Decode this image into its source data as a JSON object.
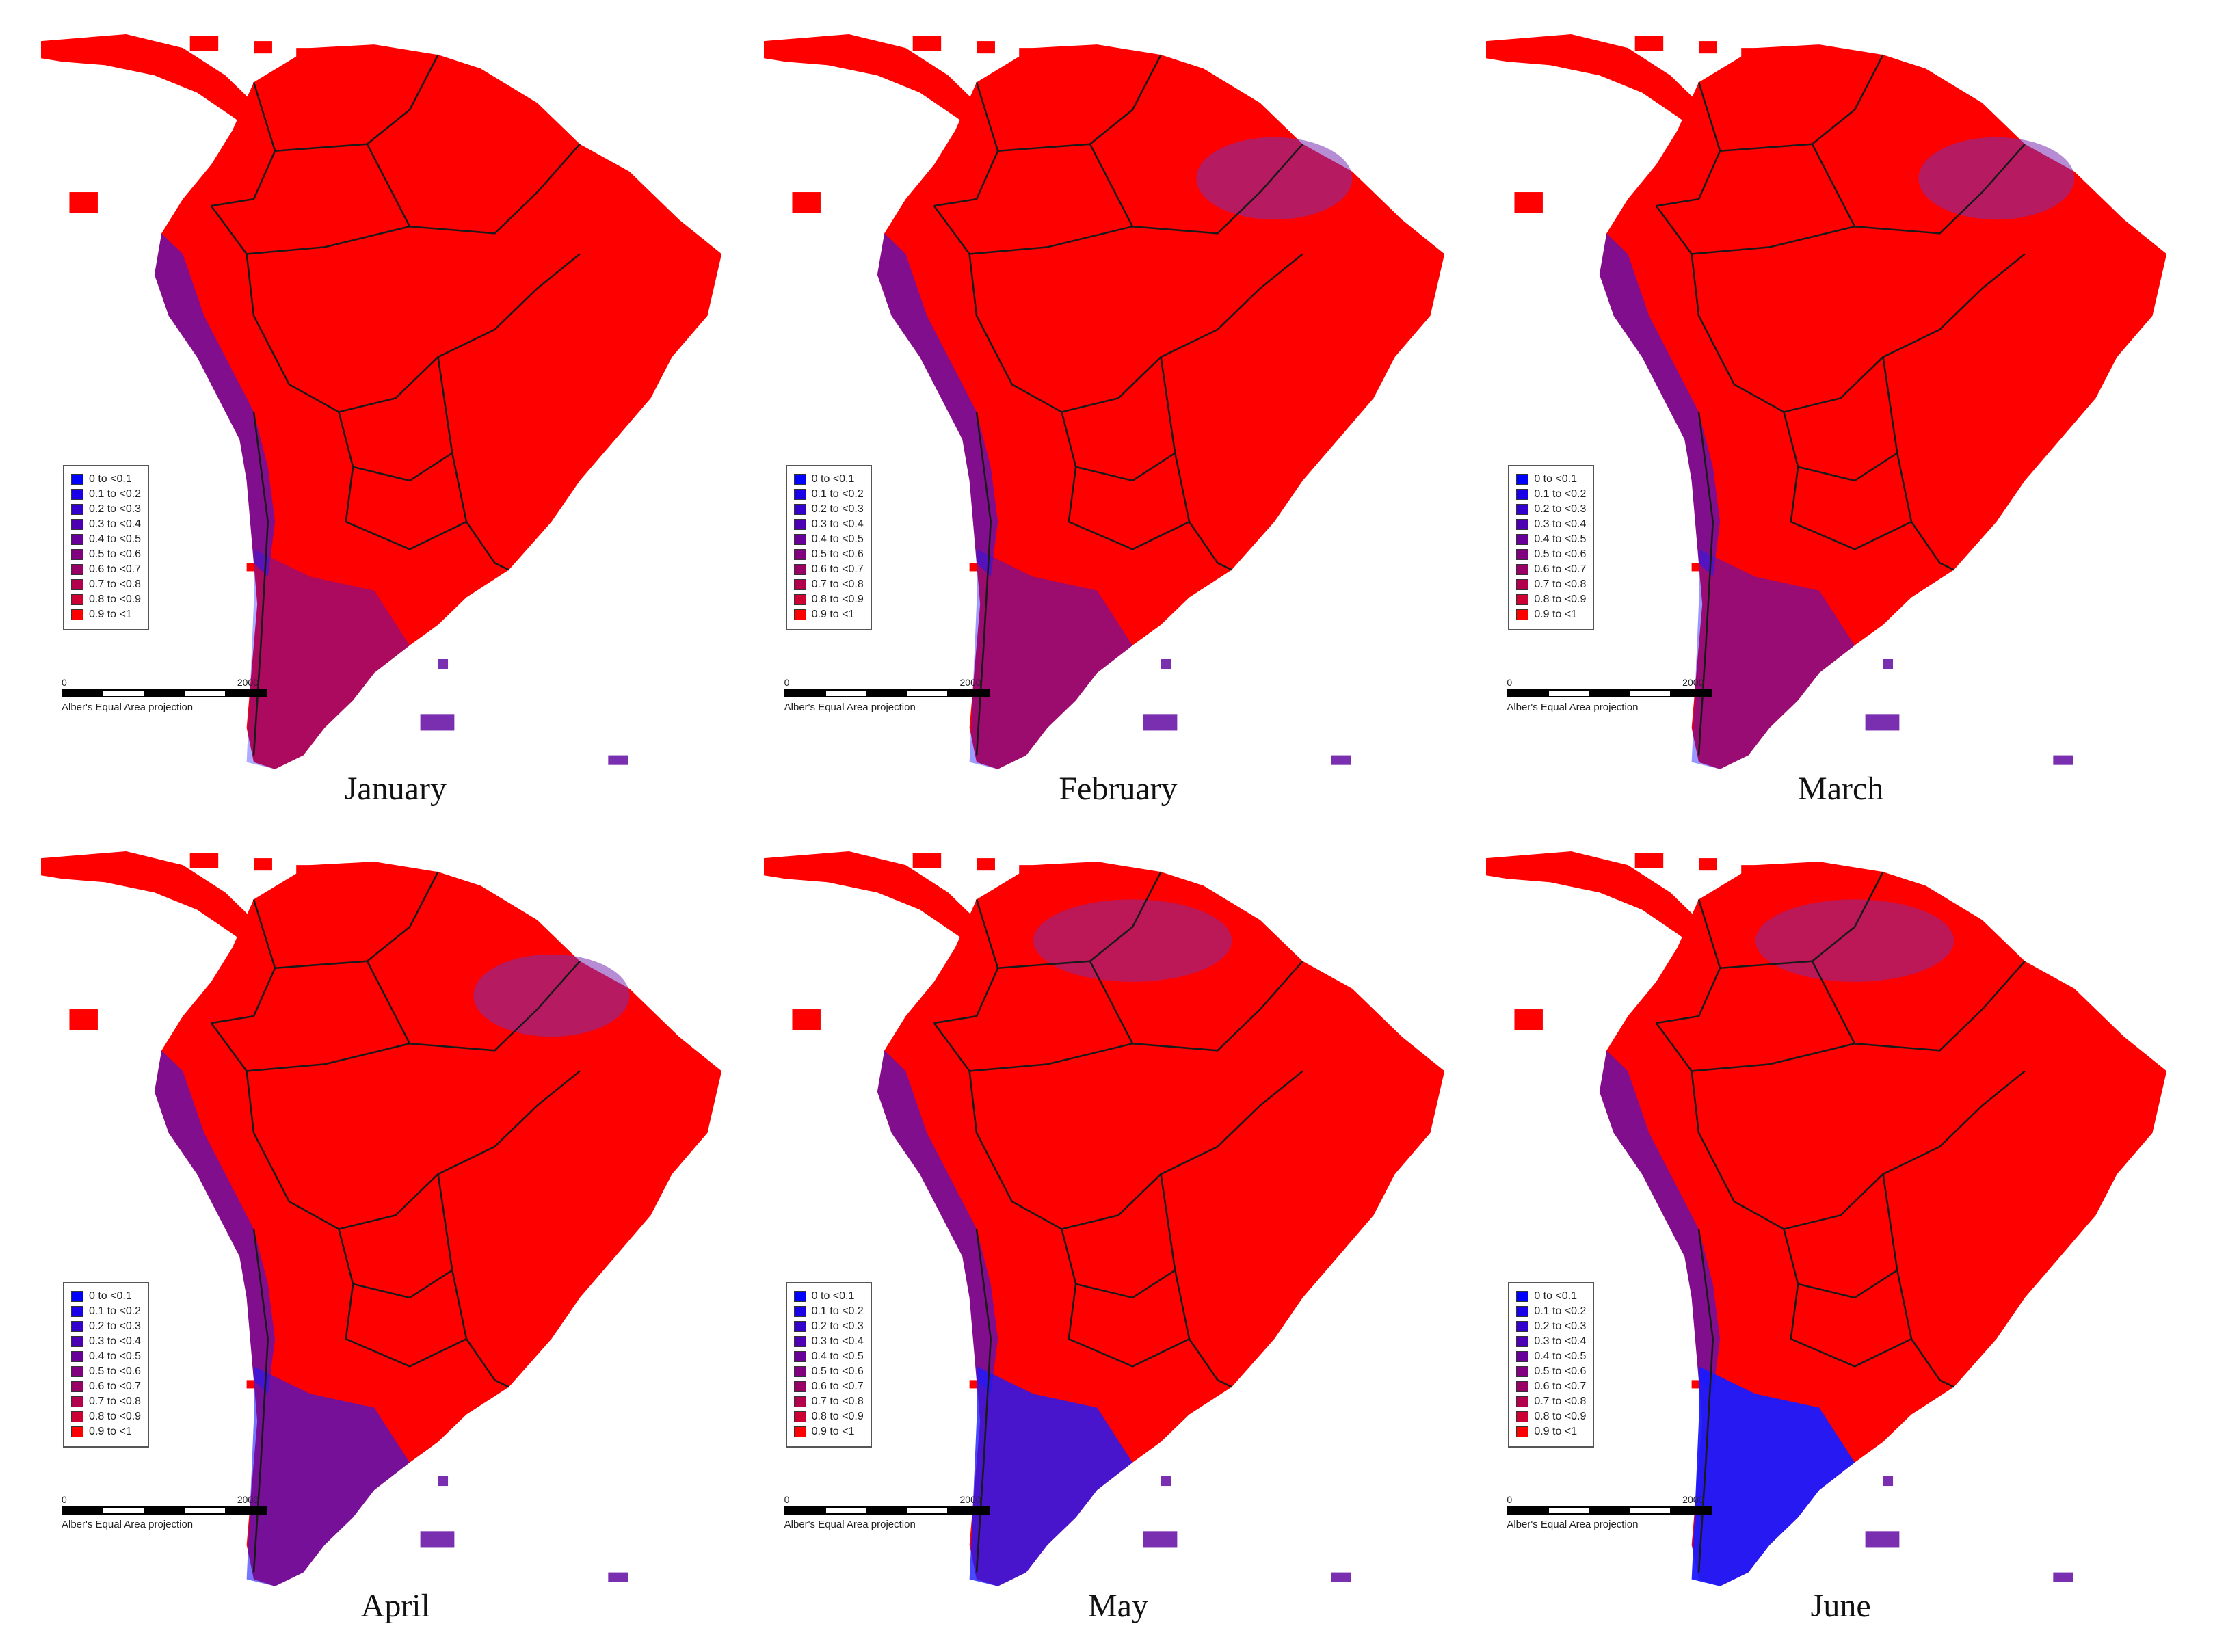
{
  "colors": {
    "land": "#ff0000",
    "border": "#1a1a1a",
    "background": "#ffffff",
    "low": "#1a1aff",
    "mid": "#7a2fb0"
  },
  "legend": {
    "items": [
      {
        "label": "0 to <0.1",
        "color": "#0000ff"
      },
      {
        "label": "0.1 to <0.2",
        "color": "#1a00e6"
      },
      {
        "label": "0.2 to <0.3",
        "color": "#3300cc"
      },
      {
        "label": "0.3 to <0.4",
        "color": "#4d00b3"
      },
      {
        "label": "0.4 to <0.5",
        "color": "#660099"
      },
      {
        "label": "0.5 to <0.6",
        "color": "#800080"
      },
      {
        "label": "0.6 to <0.7",
        "color": "#990066"
      },
      {
        "label": "0.7 to <0.8",
        "color": "#b3004d"
      },
      {
        "label": "0.8 to <0.9",
        "color": "#cc0033"
      },
      {
        "label": "0.9 to <1",
        "color": "#ff0000"
      }
    ]
  },
  "scalebar": {
    "start_label": "0",
    "end_label": "2000",
    "projection_label": "Alber's Equal Area projection"
  },
  "panels": [
    {
      "month": "January",
      "blue_extent": 0.12,
      "purple_spots": [
        "andes"
      ]
    },
    {
      "month": "February",
      "blue_extent": 0.18,
      "purple_spots": [
        "amazon",
        "andes"
      ]
    },
    {
      "month": "March",
      "blue_extent": 0.2,
      "purple_spots": [
        "amazon",
        "andes"
      ]
    },
    {
      "month": "April",
      "blue_extent": 0.35,
      "purple_spots": [
        "amazon",
        "andes",
        "south"
      ]
    },
    {
      "month": "May",
      "blue_extent": 0.55,
      "purple_spots": [
        "north",
        "andes",
        "south"
      ]
    },
    {
      "month": "June",
      "blue_extent": 0.7,
      "purple_spots": [
        "north",
        "andes",
        "south"
      ]
    }
  ]
}
